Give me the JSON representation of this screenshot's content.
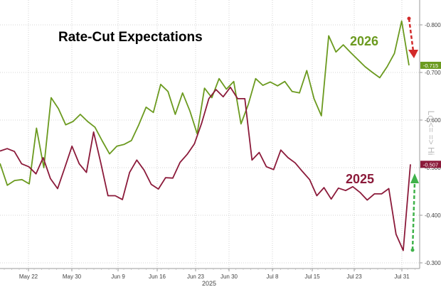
{
  "chart_data": {
    "type": "line",
    "title": "Rate-Cut Expectations",
    "ylabel": "Lo <= => Hi",
    "xlabel_year": "2025",
    "ylim": [
      0.28,
      0.83
    ],
    "y_ticks": [
      "-0.800",
      "-0.700",
      "-0.600",
      "-0.500",
      "-0.400",
      "-0.300"
    ],
    "x_ticks": [
      "May 22",
      "May 30",
      "Jun 9",
      "Jun 16",
      "Jun 23",
      "Jun 30",
      "Jul 8",
      "Jul 15",
      "Jul 23",
      "Jul 31"
    ],
    "grid": true,
    "series": [
      {
        "name": "2026",
        "color": "#6b9a1f",
        "last_value_label": "-0.715",
        "values": [
          0.509,
          0.463,
          0.473,
          0.475,
          0.466,
          0.583,
          0.5,
          0.647,
          0.624,
          0.59,
          0.597,
          0.612,
          0.597,
          0.585,
          0.556,
          0.529,
          0.545,
          0.549,
          0.557,
          0.59,
          0.627,
          0.616,
          0.675,
          0.66,
          0.612,
          0.657,
          0.619,
          0.571,
          0.667,
          0.647,
          0.687,
          0.665,
          0.681,
          0.592,
          0.633,
          0.687,
          0.673,
          0.68,
          0.672,
          0.681,
          0.66,
          0.657,
          0.704,
          0.645,
          0.609,
          0.777,
          0.743,
          0.758,
          0.742,
          0.727,
          0.712,
          0.7,
          0.689,
          0.712,
          0.74,
          0.808,
          0.715
        ]
      },
      {
        "name": "2025",
        "color": "#8b1a3a",
        "last_value_label": "-0.507",
        "values": [
          0.535,
          0.54,
          0.534,
          0.508,
          0.502,
          0.487,
          0.521,
          0.477,
          0.456,
          0.5,
          0.545,
          0.508,
          0.49,
          0.575,
          0.51,
          0.441,
          0.441,
          0.433,
          0.49,
          0.516,
          0.495,
          0.465,
          0.455,
          0.479,
          0.478,
          0.511,
          0.528,
          0.55,
          0.593,
          0.645,
          0.664,
          0.649,
          0.669,
          0.645,
          0.645,
          0.516,
          0.532,
          0.502,
          0.496,
          0.537,
          0.521,
          0.51,
          0.492,
          0.475,
          0.441,
          0.458,
          0.434,
          0.457,
          0.452,
          0.46,
          0.448,
          0.432,
          0.445,
          0.445,
          0.456,
          0.36,
          0.326,
          0.507
        ]
      }
    ]
  }
}
